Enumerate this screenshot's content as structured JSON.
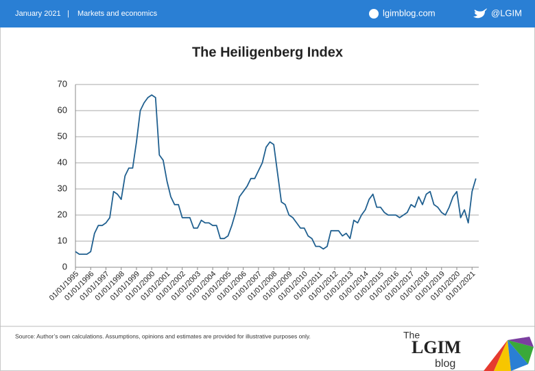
{
  "header": {
    "date": "January 2021",
    "separator": "|",
    "section": "Markets and economics",
    "site": "lgimblog.com",
    "twitter": "@LGIM"
  },
  "chart_data": {
    "type": "line",
    "title": "The Heiligenberg Index",
    "categories": [
      "01/01/1995",
      null,
      null,
      null,
      "01/01/1996",
      null,
      null,
      null,
      "01/01/1997",
      null,
      null,
      null,
      "01/01/1998",
      null,
      null,
      null,
      "01/01/1999",
      null,
      null,
      null,
      "01/01/2000",
      null,
      null,
      null,
      "01/01/2001",
      null,
      null,
      null,
      "01/01/2002",
      null,
      null,
      null,
      "01/01/2003",
      null,
      null,
      null,
      "01/01/2004",
      null,
      null,
      null,
      "01/01/2005",
      null,
      null,
      null,
      "01/01/2006",
      null,
      null,
      null,
      "01/01/2007",
      null,
      null,
      null,
      "01/01/2008",
      null,
      null,
      null,
      "01/01/2009",
      null,
      null,
      null,
      "01/01/2010",
      null,
      null,
      null,
      "01/01/2011",
      null,
      null,
      null,
      "01/01/2012",
      null,
      null,
      null,
      "01/01/2013",
      null,
      null,
      null,
      "01/01/2014",
      null,
      null,
      null,
      "01/01/2015",
      null,
      null,
      null,
      "01/01/2016",
      null,
      null,
      null,
      "01/01/2017",
      null,
      null,
      null,
      "01/01/2018",
      null,
      null,
      null,
      "01/01/2019",
      null,
      null,
      null,
      "01/01/2020",
      null,
      null,
      null,
      "01/01/2021",
      null
    ],
    "values": [
      6,
      5,
      5,
      5,
      6,
      13,
      16,
      16,
      17,
      19,
      29,
      28,
      26,
      35,
      38,
      38,
      48,
      60,
      63,
      65,
      66,
      65,
      43,
      41,
      33,
      27,
      24,
      24,
      19,
      19,
      19,
      15,
      15,
      18,
      17,
      17,
      16,
      16,
      11,
      11,
      12,
      16,
      21,
      27,
      29,
      31,
      34,
      34,
      37,
      40,
      46,
      48,
      47,
      36,
      25,
      24,
      20,
      19,
      17,
      15,
      15,
      12,
      11,
      8,
      8,
      7,
      8,
      14,
      14,
      14,
      12,
      13,
      11,
      18,
      17,
      20,
      22,
      26,
      28,
      23,
      23,
      21,
      20,
      20,
      20,
      19,
      20,
      21,
      24,
      23,
      27,
      24,
      28,
      29,
      24,
      23,
      21,
      20,
      23,
      27,
      29,
      19,
      22,
      17,
      29,
      34
    ],
    "color": "#1f5f8f",
    "ylim": [
      0,
      70
    ],
    "yticks": [
      0,
      10,
      20,
      30,
      40,
      50,
      60,
      70
    ],
    "grid": true
  },
  "footer": {
    "source": "Source: Author’s own calculations. Assumptions, opinions and estimates are provided for illustrative purposes only.",
    "logo_the": "The",
    "logo_name": "LGIM",
    "logo_blog": "blog"
  }
}
